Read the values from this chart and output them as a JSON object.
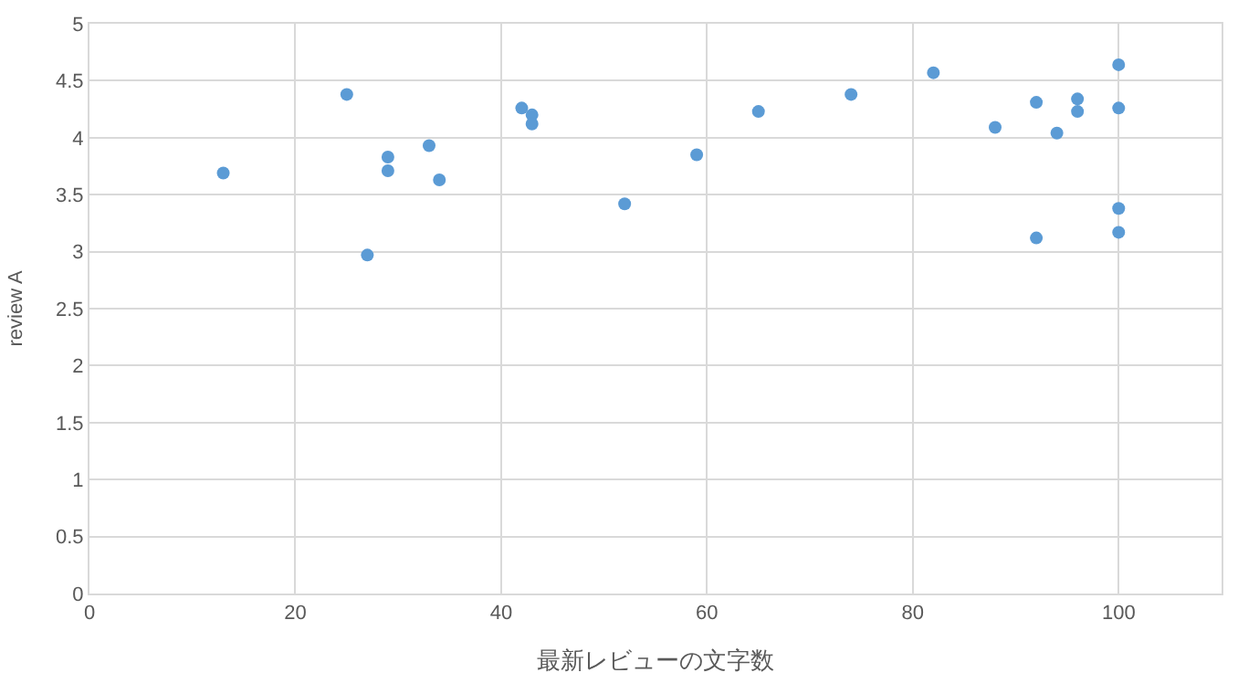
{
  "chart_data": {
    "type": "scatter",
    "xlabel": "最新レビューの文字数",
    "ylabel": "review A",
    "x": [
      13,
      25,
      27,
      29,
      29,
      33,
      34,
      42,
      43,
      43,
      52,
      59,
      65,
      74,
      82,
      88,
      92,
      92,
      94,
      96,
      96,
      100,
      100,
      100,
      100
    ],
    "series": [
      {
        "color": "#5b9bd5",
        "values": [
          3.69,
          4.38,
          2.97,
          3.83,
          3.71,
          3.93,
          3.63,
          4.26,
          4.2,
          4.12,
          3.42,
          3.85,
          4.23,
          4.38,
          4.57,
          4.09,
          4.31,
          3.12,
          4.04,
          4.34,
          4.23,
          4.64,
          4.26,
          3.38,
          3.17
        ]
      }
    ],
    "xlim": [
      0,
      110
    ],
    "xticks": [
      0,
      20,
      40,
      60,
      80,
      100
    ],
    "ylim": [
      0,
      5
    ],
    "yticks": [
      0,
      0.5,
      1,
      1.5,
      2,
      2.5,
      3,
      3.5,
      4,
      4.5,
      5
    ],
    "grid": true,
    "legend": false,
    "marker": "circle"
  }
}
